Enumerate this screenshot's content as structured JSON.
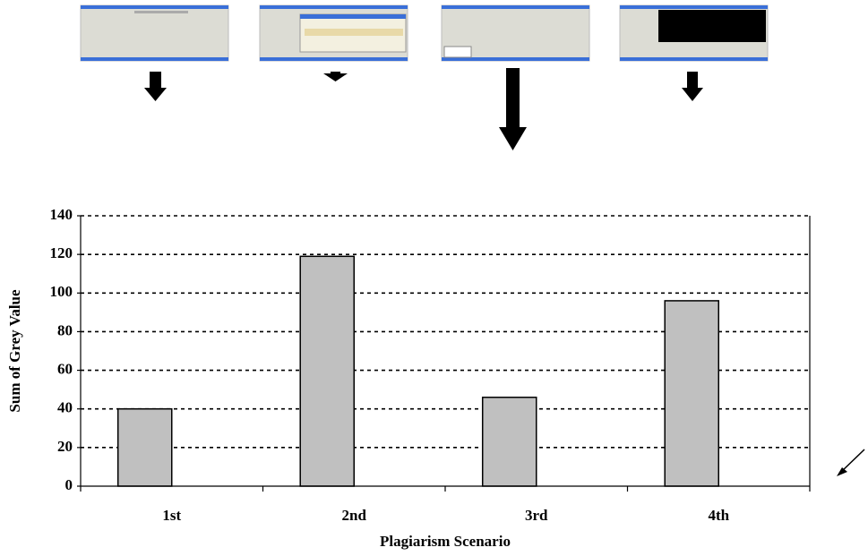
{
  "chart_data": {
    "type": "bar",
    "categories": [
      "1st",
      "2nd",
      "3rd",
      "4th"
    ],
    "values": [
      40,
      119,
      46,
      96
    ],
    "color": "#c0c0c0",
    "xlabel": "Plagiarism Scenario",
    "ylabel": "Sum of Grey Value",
    "ylim": [
      0,
      140
    ],
    "yticks": [
      0,
      20,
      40,
      60,
      80,
      100,
      120,
      140
    ],
    "grid": true
  }
}
